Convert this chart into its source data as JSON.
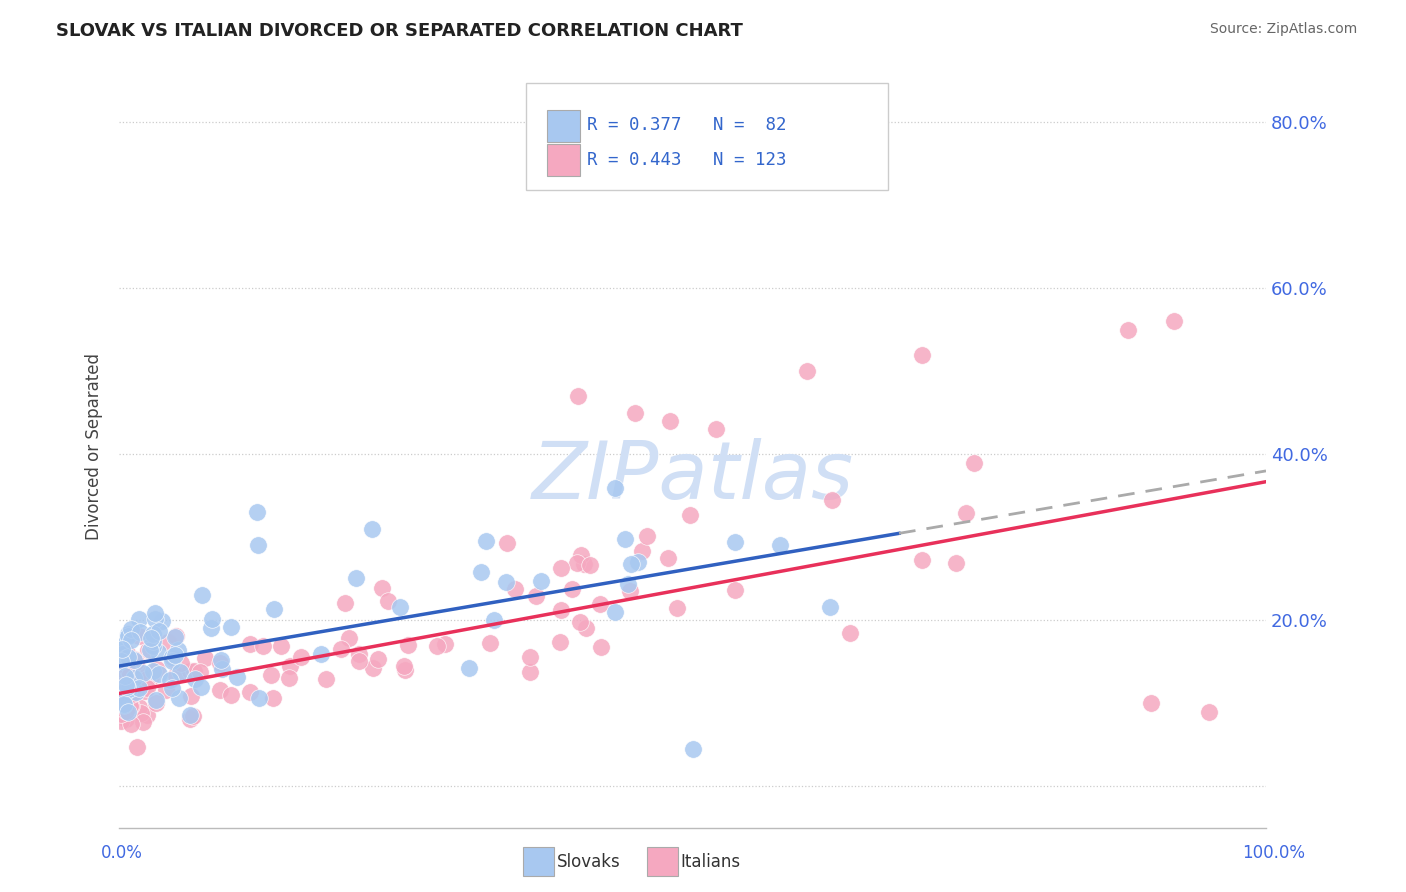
{
  "title": "SLOVAK VS ITALIAN DIVORCED OR SEPARATED CORRELATION CHART",
  "source": "Source: ZipAtlas.com",
  "ylabel": "Divorced or Separated",
  "xlim": [
    0,
    1.0
  ],
  "ylim": [
    -0.05,
    0.87
  ],
  "yticks": [
    0.0,
    0.2,
    0.4,
    0.6,
    0.8
  ],
  "ytick_labels": [
    "",
    "20.0%",
    "40.0%",
    "60.0%",
    "80.0%"
  ],
  "legend_text1": "R = 0.377   N =  82",
  "legend_text2": "R = 0.443   N = 123",
  "slovak_color": "#a8c8f0",
  "italian_color": "#f5a8c0",
  "trendline_slovak_color": "#3060c0",
  "trendline_italian_color": "#e8305a",
  "trendline_extrap_color": "#aaaaaa",
  "background_color": "#ffffff",
  "watermark_color": "#d0dff5",
  "slovak_seed": 101,
  "italian_seed": 202
}
